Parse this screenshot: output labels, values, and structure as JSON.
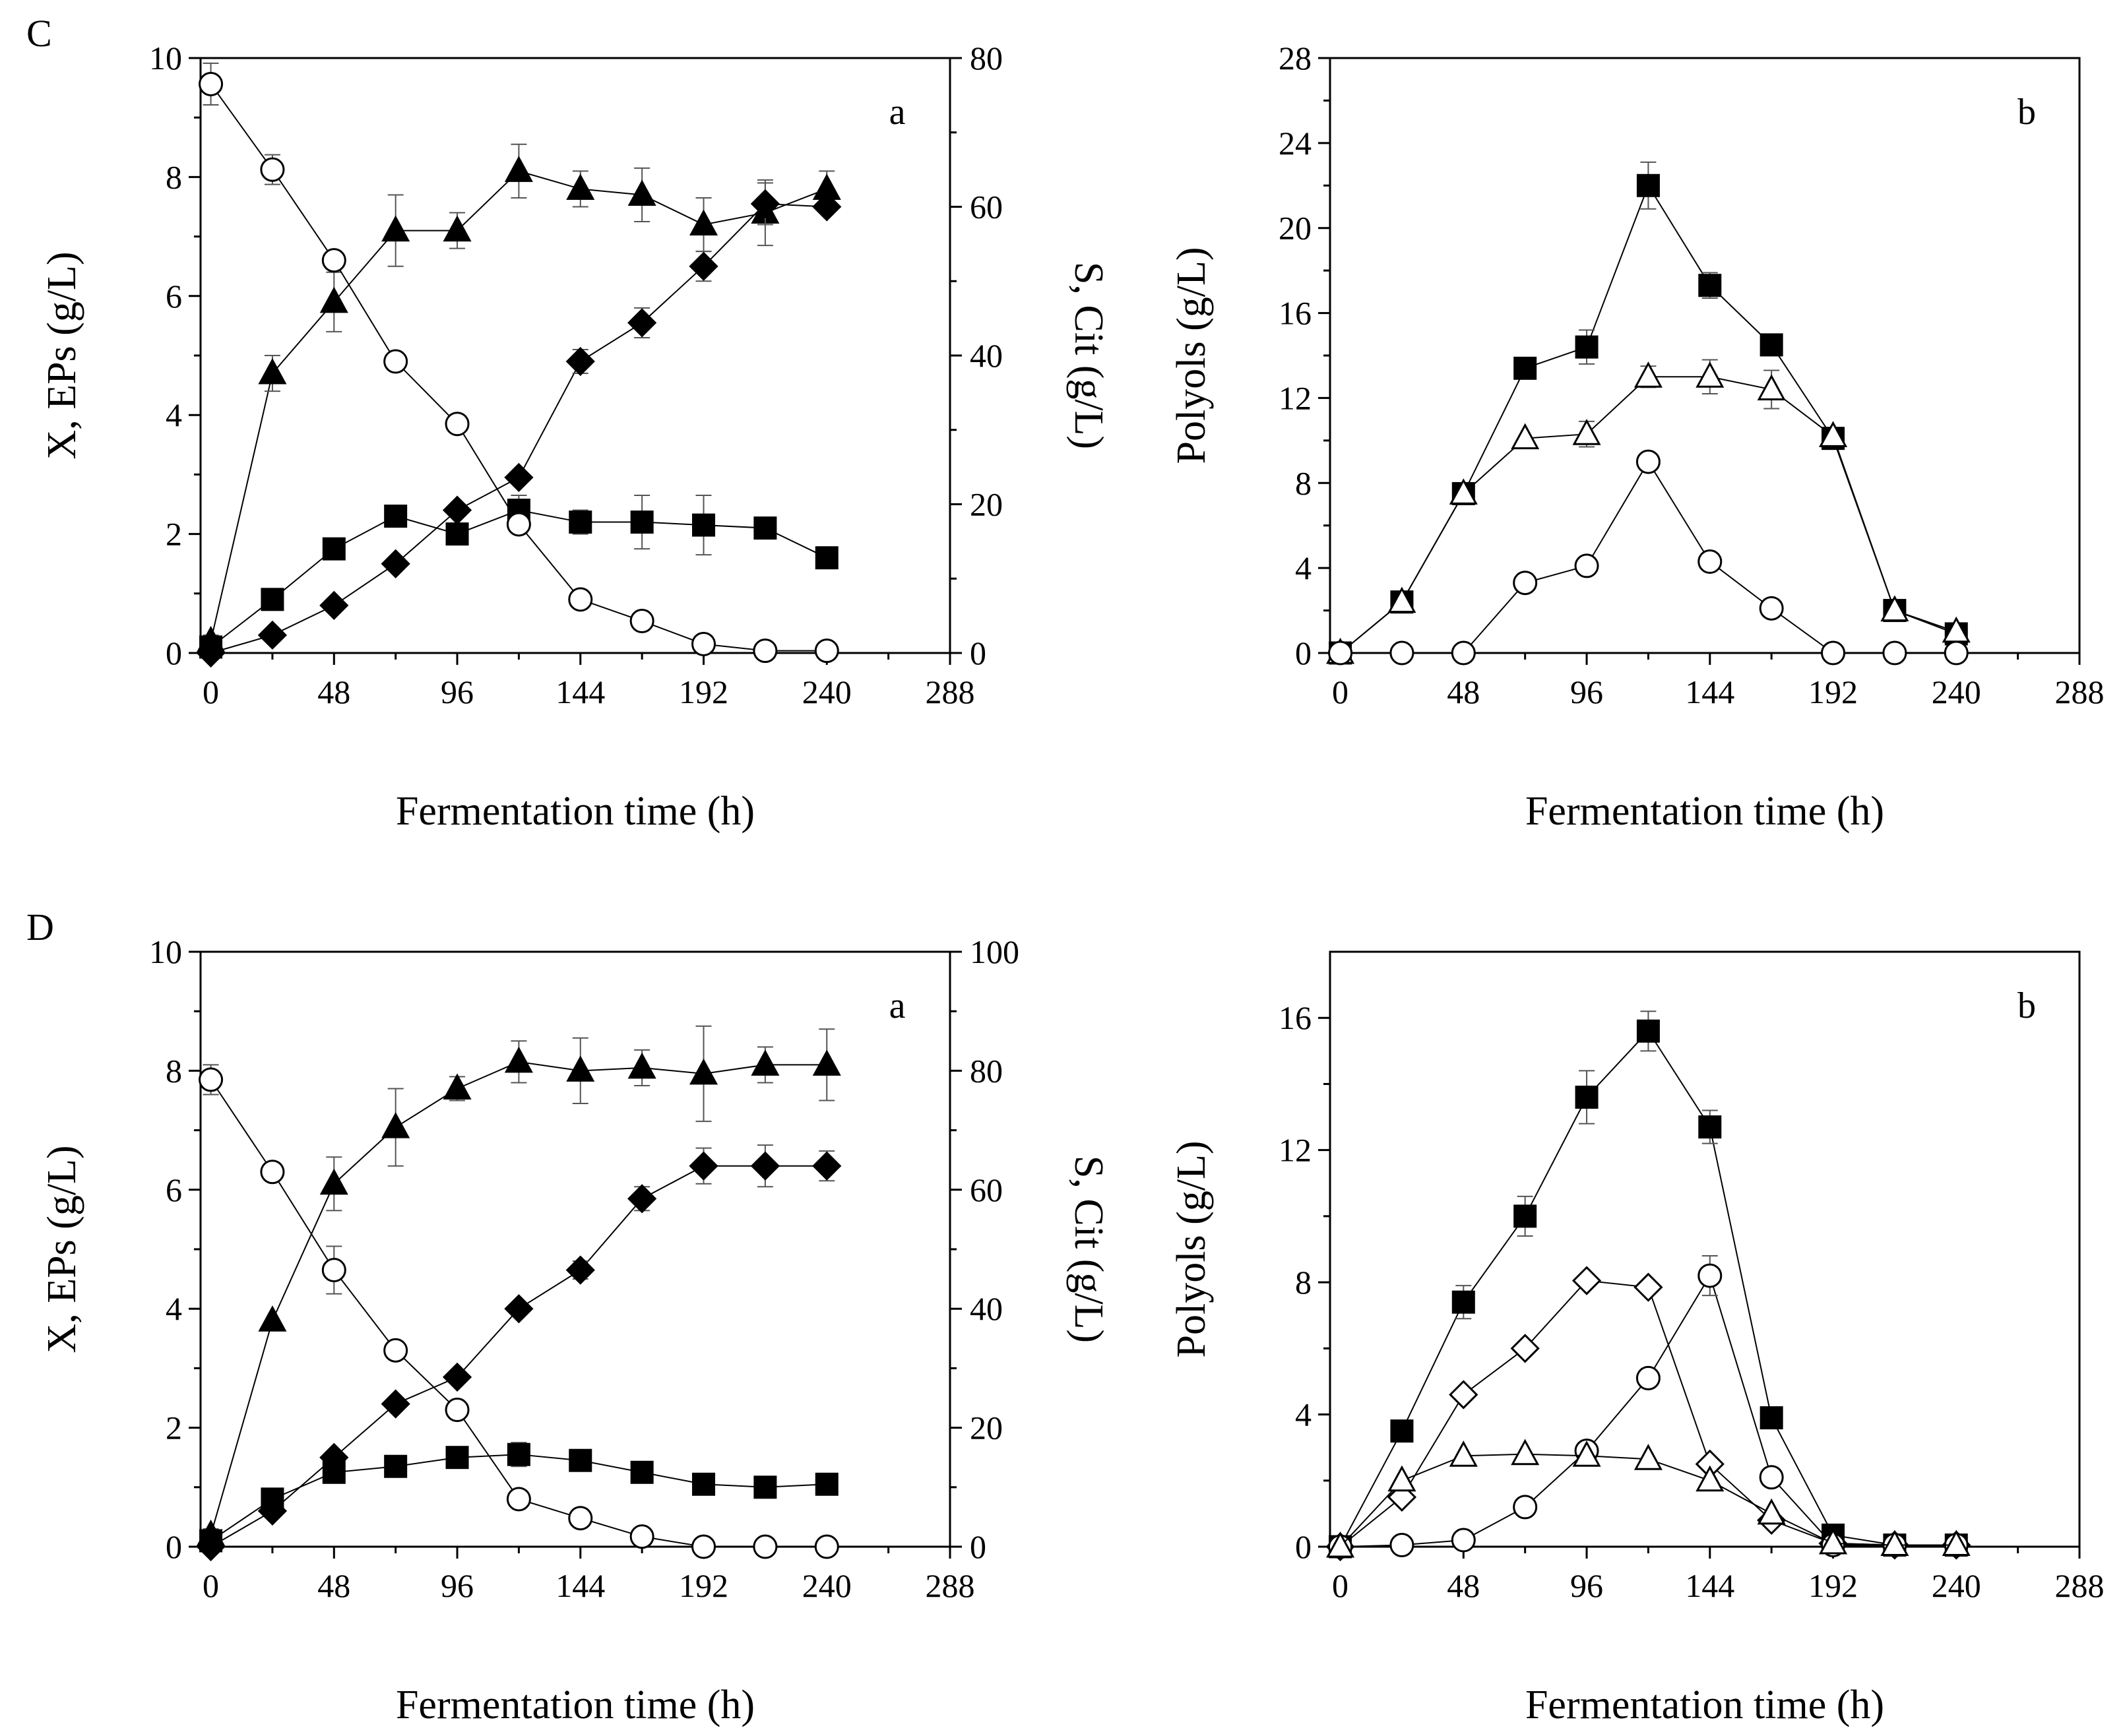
{
  "rows": [
    {
      "label": "C"
    },
    {
      "label": "D"
    }
  ],
  "chart_data": [
    {
      "id": "C-a",
      "type": "scatter",
      "panel_letter": "a",
      "title": "",
      "xlabel": "Fermentation time (h)",
      "ylabel": "X, EPs (g/L)",
      "y2label": "S, Cit (g/L)",
      "xlim": [
        -4,
        288
      ],
      "ylim": [
        0,
        10
      ],
      "y2lim": [
        0,
        80
      ],
      "xticks": [
        0,
        48,
        96,
        144,
        192,
        240,
        288
      ],
      "yticks": [
        0,
        2,
        4,
        6,
        8,
        10
      ],
      "y2ticks": [
        0,
        20,
        40,
        60,
        80
      ],
      "series": [
        {
          "name": "triangle-filled",
          "marker": "triangle",
          "filled": true,
          "axis": "left",
          "x": [
            0,
            24,
            48,
            72,
            96,
            120,
            144,
            168,
            192,
            216,
            240
          ],
          "y": [
            0.2,
            4.7,
            5.9,
            7.1,
            7.1,
            8.1,
            7.8,
            7.7,
            7.2,
            7.4,
            7.8
          ],
          "err": [
            0.1,
            0.3,
            0.5,
            0.6,
            0.3,
            0.45,
            0.3,
            0.45,
            0.45,
            0.55,
            0.3
          ]
        },
        {
          "name": "diamond-filled",
          "marker": "diamond",
          "filled": true,
          "axis": "left",
          "x": [
            0,
            24,
            48,
            72,
            96,
            120,
            144,
            168,
            192,
            216,
            240
          ],
          "y": [
            0.0,
            0.3,
            0.8,
            1.5,
            2.4,
            2.95,
            4.9,
            5.55,
            6.5,
            7.55,
            7.5
          ],
          "err": [
            0,
            0,
            0,
            0,
            0,
            0,
            0.2,
            0.25,
            0.25,
            0.35,
            0
          ]
        },
        {
          "name": "square-filled",
          "marker": "square",
          "filled": true,
          "axis": "left",
          "x": [
            0,
            24,
            48,
            72,
            96,
            120,
            144,
            168,
            192,
            216,
            240
          ],
          "y": [
            0.1,
            0.9,
            1.75,
            2.3,
            2.0,
            2.4,
            2.2,
            2.2,
            2.15,
            2.1,
            1.6
          ],
          "err": [
            0,
            0,
            0,
            0,
            0.15,
            0.25,
            0.2,
            0.45,
            0.5,
            0,
            0
          ]
        },
        {
          "name": "circle-open",
          "marker": "circle",
          "filled": false,
          "axis": "right",
          "x": [
            0,
            24,
            48,
            72,
            96,
            120,
            144,
            168,
            192,
            216,
            240
          ],
          "y": [
            76.5,
            65,
            52.8,
            39.2,
            30.8,
            17.3,
            7.2,
            4.3,
            1.2,
            0.3,
            0.3
          ],
          "err": [
            2.8,
            2.0,
            0,
            0,
            0,
            0,
            0,
            0,
            0,
            0,
            0
          ]
        }
      ]
    },
    {
      "id": "C-b",
      "type": "scatter",
      "panel_letter": "b",
      "title": "",
      "xlabel": "Fermentation time (h)",
      "ylabel": "Polyols (g/L)",
      "xlim": [
        -4,
        288
      ],
      "ylim": [
        0,
        28
      ],
      "xticks": [
        0,
        48,
        96,
        144,
        192,
        240,
        288
      ],
      "yticks": [
        0,
        4,
        8,
        12,
        16,
        20,
        24,
        28
      ],
      "series": [
        {
          "name": "square-filled",
          "marker": "square",
          "filled": true,
          "x": [
            0,
            24,
            48,
            72,
            96,
            120,
            144,
            168,
            192,
            216,
            240
          ],
          "y": [
            0,
            2.4,
            7.5,
            13.4,
            14.4,
            22.0,
            17.3,
            14.5,
            10.1,
            2.0,
            0.9
          ],
          "err": [
            0,
            0,
            0,
            0.4,
            0.8,
            1.1,
            0.6,
            0.5,
            0,
            0,
            0
          ]
        },
        {
          "name": "triangle-open",
          "marker": "triangle",
          "filled": false,
          "x": [
            0,
            24,
            48,
            72,
            96,
            120,
            144,
            168,
            192,
            216,
            240
          ],
          "y": [
            0,
            2.4,
            7.5,
            10.1,
            10.3,
            13.0,
            13.0,
            12.4,
            10.2,
            2.0,
            1.0
          ],
          "err": [
            0,
            0,
            0,
            0,
            0.6,
            0.5,
            0.8,
            0.9,
            0,
            0,
            0
          ]
        },
        {
          "name": "circle-open",
          "marker": "circle",
          "filled": false,
          "x": [
            0,
            24,
            48,
            72,
            96,
            120,
            144,
            168,
            192,
            216,
            240
          ],
          "y": [
            0,
            0,
            0,
            3.3,
            4.1,
            9.0,
            4.3,
            2.1,
            0,
            0,
            0
          ],
          "err": [
            0,
            0,
            0,
            0,
            0,
            0,
            0,
            0,
            0,
            0,
            0
          ]
        }
      ]
    },
    {
      "id": "D-a",
      "type": "scatter",
      "panel_letter": "a",
      "title": "",
      "xlabel": "Fermentation time (h)",
      "ylabel": "X, EPs (g/L)",
      "y2label": "S, Cit (g/L)",
      "xlim": [
        -4,
        288
      ],
      "ylim": [
        0,
        10
      ],
      "y2lim": [
        0,
        100
      ],
      "xticks": [
        0,
        48,
        96,
        144,
        192,
        240,
        288
      ],
      "yticks": [
        0,
        2,
        4,
        6,
        8,
        10
      ],
      "y2ticks": [
        0,
        20,
        40,
        60,
        80,
        100
      ],
      "series": [
        {
          "name": "triangle-filled",
          "marker": "triangle",
          "filled": true,
          "axis": "left",
          "x": [
            0,
            24,
            48,
            72,
            96,
            120,
            144,
            168,
            192,
            216,
            240
          ],
          "y": [
            0.2,
            3.8,
            6.1,
            7.05,
            7.7,
            8.15,
            8.0,
            8.05,
            7.95,
            8.1,
            8.1
          ],
          "err": [
            0.1,
            0,
            0.45,
            0.65,
            0.2,
            0.35,
            0.55,
            0.3,
            0.8,
            0.3,
            0.6
          ]
        },
        {
          "name": "diamond-filled",
          "marker": "diamond",
          "filled": true,
          "axis": "left",
          "x": [
            0,
            24,
            48,
            72,
            96,
            120,
            144,
            168,
            192,
            216,
            240
          ],
          "y": [
            0.0,
            0.6,
            1.5,
            2.4,
            2.85,
            4.0,
            4.65,
            5.85,
            6.4,
            6.4,
            6.4
          ],
          "err": [
            0,
            0,
            0,
            0,
            0,
            0,
            0.15,
            0.2,
            0.3,
            0.35,
            0.25
          ]
        },
        {
          "name": "square-filled",
          "marker": "square",
          "filled": true,
          "axis": "left",
          "x": [
            0,
            24,
            48,
            72,
            96,
            120,
            144,
            168,
            192,
            216,
            240
          ],
          "y": [
            0.1,
            0.8,
            1.25,
            1.35,
            1.5,
            1.55,
            1.45,
            1.25,
            1.05,
            1.0,
            1.05
          ],
          "err": [
            0,
            0,
            0,
            0,
            0,
            0.2,
            0,
            0,
            0,
            0,
            0
          ]
        },
        {
          "name": "circle-open",
          "marker": "circle",
          "filled": false,
          "axis": "right",
          "x": [
            0,
            24,
            48,
            72,
            96,
            120,
            144,
            168,
            192,
            216,
            240
          ],
          "y": [
            78.5,
            63,
            46.5,
            33,
            23,
            8,
            4.8,
            1.7,
            0,
            0,
            0
          ],
          "err": [
            2.5,
            0,
            4.0,
            0,
            0,
            0,
            0,
            0,
            0,
            0,
            0
          ]
        }
      ]
    },
    {
      "id": "D-b",
      "type": "scatter",
      "panel_letter": "b",
      "title": "",
      "xlabel": "Fermentation time (h)",
      "ylabel": "Polyols (g/L)",
      "xlim": [
        -4,
        288
      ],
      "ylim": [
        0,
        18
      ],
      "xticks": [
        0,
        48,
        96,
        144,
        192,
        240,
        288
      ],
      "yticks": [
        0,
        4,
        8,
        12,
        16
      ],
      "series": [
        {
          "name": "square-filled",
          "marker": "square",
          "filled": true,
          "x": [
            0,
            24,
            48,
            72,
            96,
            120,
            144,
            168,
            192,
            216,
            240
          ],
          "y": [
            0,
            3.5,
            7.4,
            10.0,
            13.6,
            15.6,
            12.7,
            3.9,
            0.35,
            0.05,
            0.05
          ],
          "err": [
            0,
            0,
            0.5,
            0.6,
            0.8,
            0.6,
            0.5,
            0,
            0,
            0,
            0
          ]
        },
        {
          "name": "diamond-open",
          "marker": "diamond",
          "filled": false,
          "x": [
            0,
            24,
            48,
            72,
            96,
            120,
            144,
            168,
            192,
            216,
            240
          ],
          "y": [
            0,
            1.5,
            4.6,
            6.0,
            8.05,
            7.85,
            2.5,
            0.8,
            0.1,
            0.05,
            0.05
          ],
          "err": [
            0,
            0,
            0,
            0,
            0,
            0,
            0,
            0,
            0,
            0,
            0
          ]
        },
        {
          "name": "circle-open",
          "marker": "circle",
          "filled": false,
          "x": [
            0,
            24,
            48,
            72,
            96,
            120,
            144,
            168,
            192,
            216,
            240
          ],
          "y": [
            0,
            0.05,
            0.2,
            1.2,
            2.9,
            5.1,
            8.2,
            2.1,
            0.05,
            0.05,
            0.05
          ],
          "err": [
            0,
            0,
            0,
            0,
            0,
            0,
            0.6,
            0,
            0,
            0,
            0
          ]
        },
        {
          "name": "triangle-open",
          "marker": "triangle",
          "filled": false,
          "x": [
            0,
            24,
            48,
            72,
            96,
            120,
            144,
            168,
            192,
            216,
            240
          ],
          "y": [
            0,
            2.0,
            2.75,
            2.8,
            2.75,
            2.65,
            2.0,
            1.0,
            0.1,
            0.05,
            0.05
          ],
          "err": [
            0,
            0,
            0,
            0,
            0,
            0,
            0,
            0,
            0,
            0,
            0
          ]
        }
      ]
    }
  ]
}
